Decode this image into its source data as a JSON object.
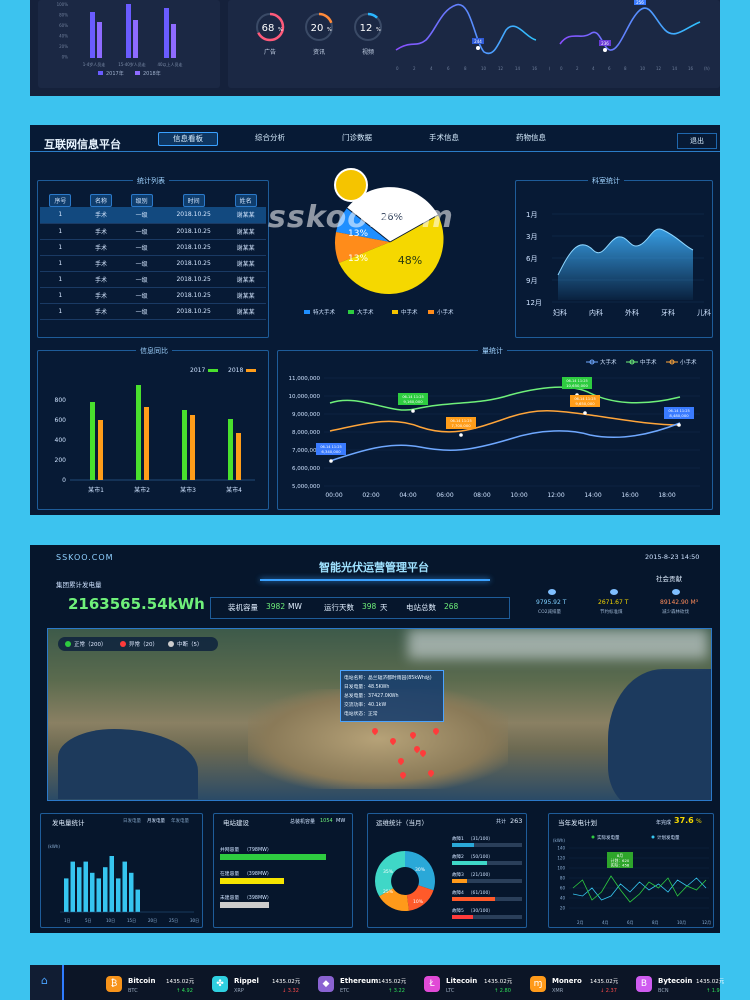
{
  "top": {
    "bars": {
      "legend": [
        "2017年",
        "2018年"
      ],
      "yticks": [
        "100%",
        "80%",
        "60%",
        "40%",
        "20%",
        "0%"
      ],
      "xticks": [
        "1-4岁人员走",
        "15-40岁人员走",
        "40以上人员走"
      ]
    },
    "donuts": [
      {
        "value": "68",
        "unit": "%",
        "label": "广告"
      },
      {
        "value": "20",
        "unit": "%",
        "label": "资讯"
      },
      {
        "value": "12",
        "unit": "%",
        "label": "视频"
      }
    ],
    "line1": {
      "marker": "244",
      "xticks": [
        "0",
        "2",
        "4",
        "6",
        "8",
        "10",
        "12",
        "14",
        "16",
        "(h)"
      ]
    },
    "line2": {
      "marker": "236",
      "peak": "256",
      "xticks": [
        "0",
        "2",
        "4",
        "6",
        "8",
        "10",
        "12",
        "14",
        "16",
        "(h)"
      ]
    }
  },
  "platform1": {
    "title": "互联网信息平台",
    "nav": [
      "信息看板",
      "综合分析",
      "门诊数据",
      "手术信息",
      "药物信息"
    ],
    "logout": "退出",
    "table": {
      "title": "统计列表",
      "headers": [
        "序号",
        "名称",
        "级别",
        "时间",
        "姓名"
      ],
      "rows": [
        [
          "1",
          "手术",
          "一级",
          "2018.10.25",
          "谢某某"
        ],
        [
          "1",
          "手术",
          "一级",
          "2018.10.25",
          "谢某某"
        ],
        [
          "1",
          "手术",
          "一级",
          "2018.10.25",
          "谢某某"
        ],
        [
          "1",
          "手术",
          "一级",
          "2018.10.25",
          "谢某某"
        ],
        [
          "1",
          "手术",
          "一级",
          "2018.10.25",
          "谢某某"
        ],
        [
          "1",
          "手术",
          "一级",
          "2018.10.25",
          "谢某某"
        ],
        [
          "1",
          "手术",
          "一级",
          "2018.10.25",
          "谢某某"
        ]
      ]
    },
    "pie": {
      "labels": [
        "26%",
        "13%",
        "13%",
        "48%"
      ],
      "legend": [
        "特大手术",
        "大手术",
        "中手术",
        "小手术"
      ],
      "colors": [
        "#1f8fff",
        "#2ecc40",
        "#f5c400",
        "#ff8c1a"
      ]
    },
    "watermark": "sskoo.com",
    "dept": {
      "title": "科室统计",
      "yticks": [
        "1月",
        "3月",
        "6月",
        "9月",
        "12月"
      ],
      "xticks": [
        "妇科",
        "内科",
        "外科",
        "牙科",
        "儿科"
      ]
    },
    "compare": {
      "title": "信息同比",
      "legend": [
        "2017",
        "2018"
      ],
      "yticks": [
        "800",
        "600",
        "400",
        "200",
        "0"
      ],
      "categories": [
        "某市1",
        "某市2",
        "某市3",
        "某市4"
      ],
      "series": [
        {
          "name": "2017",
          "values": [
            780,
            950,
            700,
            610
          ]
        },
        {
          "name": "2018",
          "values": [
            600,
            730,
            650,
            470
          ]
        }
      ],
      "ylim": [
        0,
        1000
      ]
    },
    "volume": {
      "title": "量统计",
      "legend": [
        "大手术",
        "中手术",
        "小手术"
      ],
      "yticks": [
        "11,000,000",
        "10,000,000",
        "9,000,000",
        "8,000,000",
        "7,000,000",
        "6,000,000",
        "5,000,000"
      ],
      "xticks": [
        "00:00",
        "02:00",
        "04:00",
        "06:00",
        "08:00",
        "10:00",
        "12:00",
        "14:00",
        "16:00",
        "18:00"
      ],
      "tags": [
        {
          "date": "06-14 11:25",
          "value": "9,160,000"
        },
        {
          "date": "06-14 11:25",
          "value": "10,650,000"
        },
        {
          "date": "06-14 11:25",
          "value": "7,700,000"
        },
        {
          "date": "06-14 11:25",
          "value": "9,650,000"
        },
        {
          "date": "06-14 11:25",
          "value": "6,340,000"
        },
        {
          "date": "06-14 11:25",
          "value": "8,480,000"
        }
      ]
    }
  },
  "platform2": {
    "brand": "SSKOO.COM",
    "title": "智能光伏运营管理平台",
    "datetime": "2015-8-23 14:50",
    "power_label": "集团累计发电量",
    "power_value": "2163565.54kWh",
    "capacity_label": "装机容量",
    "capacity_value": "3982",
    "capacity_unit": "MW",
    "days_label": "运行天数",
    "days_value": "398",
    "days_unit": "天",
    "stations_label": "电站总数",
    "stations_value": "268",
    "social": {
      "title": "社会贡献",
      "items": [
        {
          "value": "9795.92 T",
          "label": "CO2减排量"
        },
        {
          "value": "2671.67 T",
          "label": "节约标准煤"
        },
        {
          "value": "89142.90 M³",
          "label": "减少森林砍伐"
        }
      ]
    },
    "map_legend": [
      "正常（200）",
      "异常（20）",
      "中断（5）"
    ],
    "tooltip": [
      "电站名称：晶兰辐济都时雨园(85kWh站)",
      "日发电量：48.5KWh",
      "总发电量：37427.0KWh",
      "交流功率：40.1kW",
      "电站状态：正常"
    ],
    "gen": {
      "title": "发电量统计",
      "tabs": [
        "日发电量",
        "月发电量",
        "年发电量"
      ],
      "unit": "(kWh)",
      "values": [
        6,
        9,
        8,
        9,
        7,
        6,
        8,
        10,
        6,
        9,
        7,
        4
      ],
      "xticks": [
        "1日",
        "5日",
        "10日",
        "15日",
        "20日",
        "25日",
        "30日"
      ]
    },
    "build": {
      "title": "电站建设",
      "total_label": "总装机容量",
      "total_value": "1054",
      "total_unit": "MW",
      "items": [
        {
          "label": "并网容量",
          "value": "798MW",
          "pct": 0.85
        },
        {
          "label": "在建容量",
          "value": "398MW",
          "pct": 0.51
        },
        {
          "label": "未建容量",
          "value": "398MW",
          "pct": 0.39
        }
      ]
    },
    "ops": {
      "title": "运维统计（当月）",
      "total_label": "共计",
      "total_value": "263",
      "donut_labels": [
        "30%",
        "25%",
        "10%",
        "35%"
      ],
      "items": [
        {
          "label": "故障1",
          "value": "31/100"
        },
        {
          "label": "故障2",
          "value": "50/100"
        },
        {
          "label": "故障3",
          "value": "21/100"
        },
        {
          "label": "故障4",
          "value": "61/100"
        },
        {
          "label": "故障5",
          "value": "30/100"
        }
      ]
    },
    "plan": {
      "title": "当年发电计划",
      "rate_label": "年完成",
      "rate_value": "37.6",
      "rate_unit": "%",
      "legend": [
        "实际发电量",
        "计划发电量"
      ],
      "unit": "(kWh)",
      "yticks": [
        "140",
        "120",
        "100",
        "80",
        "60",
        "40",
        "20"
      ],
      "tooltip": [
        "8月",
        "计划：620",
        "实际：458"
      ],
      "xticks": [
        "2月",
        "4月",
        "6月",
        "8月",
        "10月",
        "12月"
      ]
    }
  },
  "tickerbar": {
    "coins": [
      {
        "name": "Bitcoin",
        "sym": "BTC",
        "price": "1435.02元",
        "chg": "↑ 4.92",
        "up": true,
        "color": "#f7931a",
        "glyph": "₿"
      },
      {
        "name": "Rippel",
        "sym": "XRP",
        "price": "1435.02元",
        "chg": "↓ 3.32",
        "up": false,
        "color": "#2fd0e0",
        "glyph": "✤"
      },
      {
        "name": "Ethereum",
        "sym": "ETC",
        "price": "1435.02元",
        "chg": "↑ 3.22",
        "up": true,
        "color": "#8a63d2",
        "glyph": "◆"
      },
      {
        "name": "Litecoin",
        "sym": "LTC",
        "price": "1435.02元",
        "chg": "↑ 2.80",
        "up": true,
        "color": "#e14ad6",
        "glyph": "Ł"
      },
      {
        "name": "Monero",
        "sym": "XMR",
        "price": "1435.02元",
        "chg": "↓ 2.37",
        "up": false,
        "color": "#ff9a1a",
        "glyph": "ɱ"
      },
      {
        "name": "Bytecoin",
        "sym": "BCN",
        "price": "1435.02元",
        "chg": "↑ 1.9",
        "up": true,
        "color": "#cf5cf0",
        "glyph": "B"
      }
    ]
  }
}
